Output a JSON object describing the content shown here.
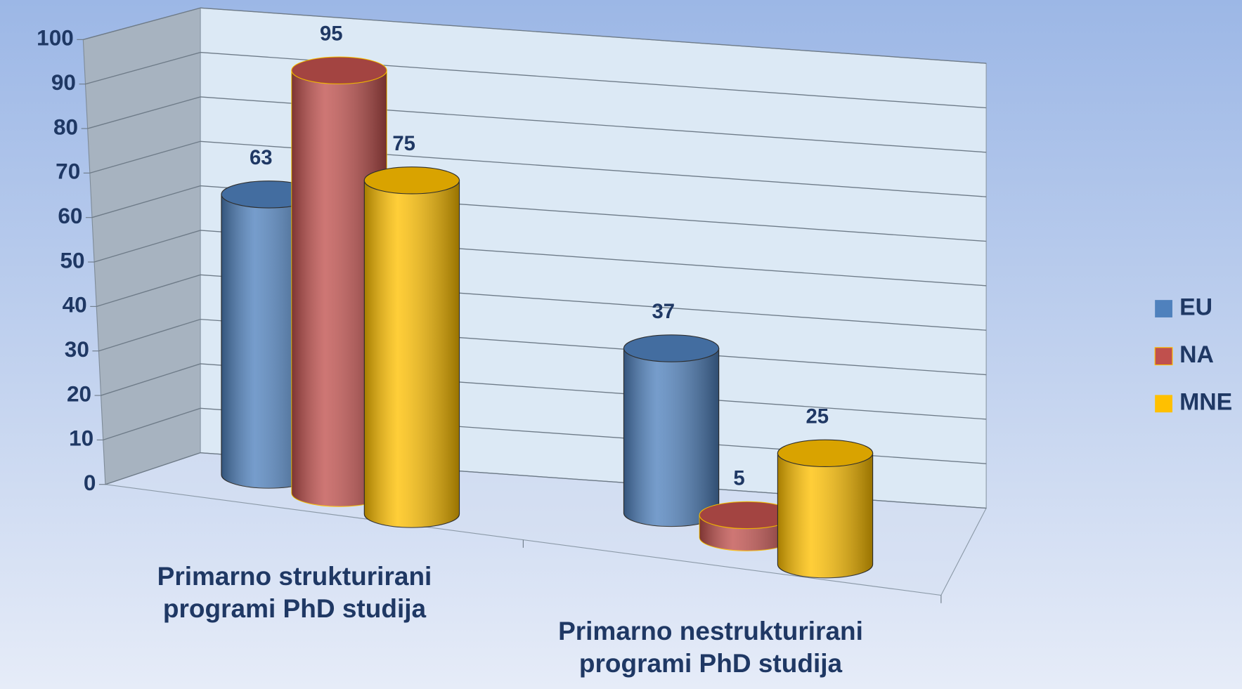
{
  "chart_data": {
    "type": "bar3d",
    "categories": [
      "Primarno strukturirani programi PhD studija",
      "Primarno nestrukturirani programi PhD studija"
    ],
    "series": [
      {
        "name": "EU",
        "color": "#4f81bd",
        "values": [
          63,
          37
        ]
      },
      {
        "name": "NA",
        "color": "#c0504d",
        "values": [
          95,
          5
        ]
      },
      {
        "name": "MNE",
        "color": "#ffc000",
        "values": [
          75,
          25
        ]
      }
    ],
    "ylim": [
      0,
      100
    ],
    "yticks": [
      0,
      10,
      20,
      30,
      40,
      50,
      60,
      70,
      80,
      90,
      100
    ],
    "grid": true,
    "legend": "right"
  }
}
